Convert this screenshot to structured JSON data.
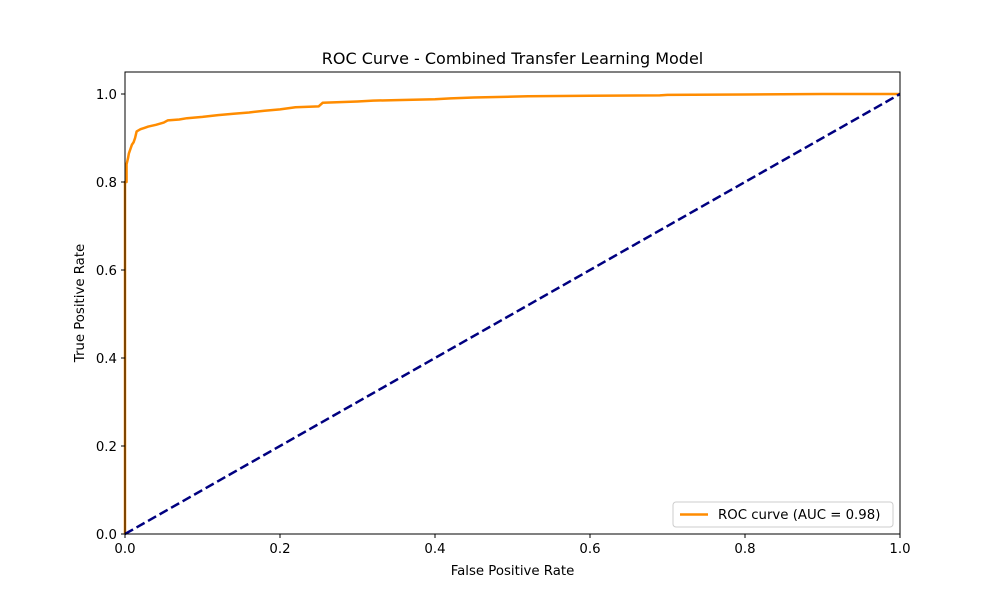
{
  "chart_data": {
    "type": "line",
    "title": "ROC Curve - Combined Transfer Learning Model",
    "xlabel": "False Positive Rate",
    "ylabel": "True Positive Rate",
    "xlim": [
      0.0,
      1.0
    ],
    "ylim": [
      0.0,
      1.05
    ],
    "xticks": [
      "0.0",
      "0.2",
      "0.4",
      "0.6",
      "0.8",
      "1.0"
    ],
    "yticks": [
      "0.0",
      "0.2",
      "0.4",
      "0.6",
      "0.8",
      "1.0"
    ],
    "grid": false,
    "legend_position": "lower-right",
    "series": [
      {
        "name": "ROC curve (AUC = 0.98)",
        "color": "#ff8c00",
        "style": "solid",
        "x": [
          0.0,
          0.0,
          0.002,
          0.002,
          0.004,
          0.005,
          0.007,
          0.009,
          0.011,
          0.013,
          0.015,
          0.02,
          0.025,
          0.03,
          0.04,
          0.05,
          0.055,
          0.07,
          0.08,
          0.1,
          0.12,
          0.14,
          0.16,
          0.18,
          0.2,
          0.22,
          0.25,
          0.255,
          0.3,
          0.32,
          0.35,
          0.4,
          0.42,
          0.45,
          0.5,
          0.52,
          0.6,
          0.69,
          0.7,
          0.8,
          0.9,
          1.0
        ],
        "y": [
          0.0,
          0.8,
          0.8,
          0.84,
          0.855,
          0.865,
          0.875,
          0.885,
          0.89,
          0.9,
          0.915,
          0.92,
          0.923,
          0.926,
          0.93,
          0.935,
          0.94,
          0.942,
          0.945,
          0.948,
          0.952,
          0.955,
          0.958,
          0.962,
          0.965,
          0.97,
          0.972,
          0.98,
          0.983,
          0.985,
          0.986,
          0.988,
          0.99,
          0.992,
          0.994,
          0.995,
          0.996,
          0.997,
          0.998,
          0.999,
          1.0,
          1.0
        ]
      },
      {
        "name": "",
        "color": "#000080",
        "style": "dashed",
        "x": [
          0.0,
          1.0
        ],
        "y": [
          0.0,
          1.0
        ]
      }
    ]
  }
}
